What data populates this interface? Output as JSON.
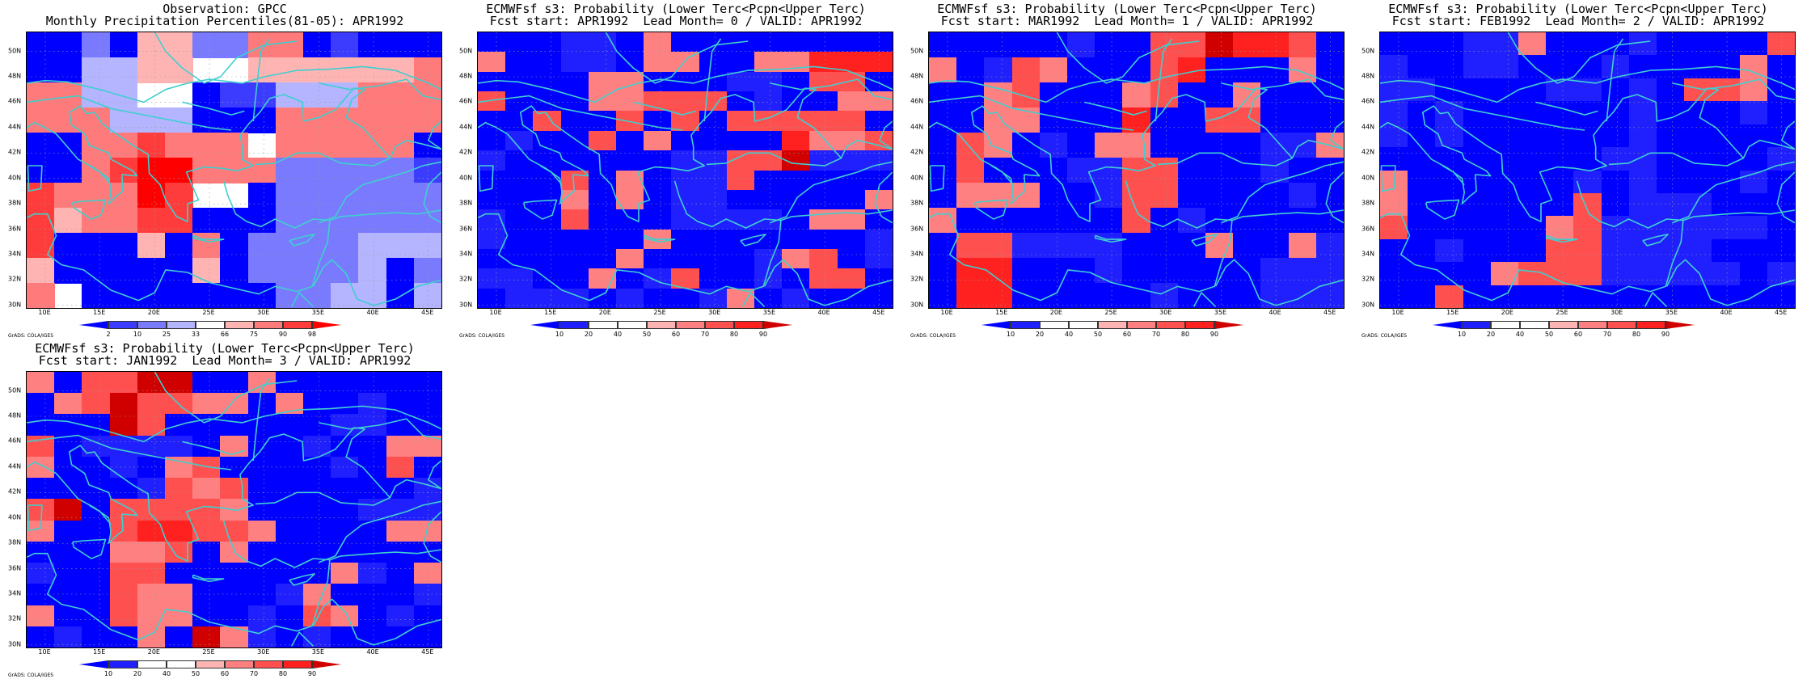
{
  "panels": [
    {
      "id": "obs",
      "title_line1": "Observation: GPCC",
      "title_line2": "Monthly Precipitation Percentiles(81-05): APR1992",
      "colorbar_labels": [
        "2",
        "10",
        "25",
        "33",
        "66",
        "75",
        "90",
        "98"
      ],
      "colorbar_colors": [
        "#0000ff",
        "#3c3cff",
        "#7a7aff",
        "#b4b4ff",
        "#ffffff",
        "#ffb4b4",
        "#ff7a7a",
        "#ff3c3c",
        "#ff0000"
      ],
      "grid_values": [
        [
          0,
          0,
          2,
          0,
          5,
          5,
          2,
          2,
          6,
          6,
          0,
          1,
          0,
          0,
          0
        ],
        [
          0,
          0,
          3,
          3,
          5,
          5,
          4,
          4,
          5,
          5,
          5,
          5,
          5,
          5,
          6
        ],
        [
          6,
          6,
          3,
          3,
          4,
          4,
          0,
          1,
          1,
          3,
          3,
          3,
          6,
          6,
          6
        ],
        [
          6,
          6,
          6,
          3,
          3,
          3,
          0,
          0,
          0,
          6,
          6,
          6,
          6,
          6,
          6
        ],
        [
          0,
          0,
          6,
          6,
          7,
          6,
          6,
          6,
          4,
          6,
          6,
          6,
          6,
          6,
          0
        ],
        [
          0,
          0,
          6,
          7,
          8,
          8,
          6,
          6,
          6,
          2,
          2,
          2,
          2,
          2,
          1
        ],
        [
          7,
          6,
          6,
          6,
          8,
          7,
          4,
          4,
          0,
          2,
          2,
          2,
          2,
          2,
          2
        ],
        [
          7,
          5,
          6,
          6,
          7,
          7,
          0,
          0,
          0,
          2,
          2,
          2,
          2,
          2,
          2
        ],
        [
          7,
          0,
          0,
          0,
          5,
          0,
          6,
          0,
          2,
          2,
          2,
          2,
          3,
          3,
          3
        ],
        [
          5,
          0,
          0,
          0,
          0,
          0,
          5,
          0,
          2,
          2,
          2,
          2,
          3,
          0,
          2
        ],
        [
          6,
          4,
          0,
          0,
          0,
          0,
          0,
          0,
          0,
          2,
          2,
          3,
          3,
          0,
          3
        ]
      ]
    },
    {
      "id": "lead0",
      "title_line1": "ECMWFsf s3: Probability (Lower Terc<Pcpn<Upper Terc)",
      "title_line2": "Fcst start: APR1992  Lead Month= 0 / VALID: APR1992",
      "colorbar_labels": [
        "10",
        "20",
        "40",
        "50",
        "60",
        "70",
        "80",
        "90"
      ],
      "colorbar_colors": [
        "#0000ff",
        "#2020ff",
        "#ffffff",
        "#ffffff",
        "#ffb4b4",
        "#ff8080",
        "#ff5050",
        "#ff2020",
        "#d00000"
      ],
      "grid_values": [
        [
          0,
          0,
          0,
          1,
          1,
          0,
          5,
          0,
          0,
          0,
          0,
          0,
          0,
          0,
          0
        ],
        [
          5,
          0,
          0,
          1,
          1,
          0,
          5,
          5,
          0,
          0,
          5,
          5,
          7,
          7,
          7
        ],
        [
          0,
          0,
          0,
          0,
          5,
          5,
          0,
          0,
          0,
          1,
          1,
          0,
          6,
          6,
          0
        ],
        [
          6,
          0,
          0,
          0,
          5,
          5,
          6,
          6,
          6,
          0,
          1,
          0,
          0,
          5,
          5
        ],
        [
          0,
          0,
          6,
          0,
          0,
          6,
          0,
          6,
          0,
          6,
          6,
          6,
          6,
          6,
          0
        ],
        [
          0,
          1,
          0,
          0,
          6,
          0,
          5,
          0,
          0,
          0,
          0,
          7,
          5,
          5,
          6
        ],
        [
          1,
          0,
          0,
          0,
          0,
          0,
          0,
          1,
          1,
          6,
          6,
          8,
          1,
          1,
          1
        ],
        [
          0,
          0,
          0,
          6,
          0,
          5,
          0,
          1,
          1,
          6,
          0,
          0,
          0,
          0,
          0
        ],
        [
          0,
          0,
          0,
          5,
          0,
          5,
          0,
          1,
          1,
          0,
          0,
          0,
          0,
          0,
          5
        ],
        [
          1,
          0,
          0,
          6,
          0,
          0,
          0,
          1,
          1,
          1,
          1,
          0,
          5,
          5,
          0
        ],
        [
          1,
          0,
          0,
          0,
          0,
          0,
          5,
          0,
          0,
          0,
          0,
          0,
          0,
          0,
          1
        ],
        [
          0,
          0,
          0,
          0,
          0,
          5,
          0,
          0,
          0,
          0,
          1,
          5,
          6,
          0,
          1
        ],
        [
          1,
          1,
          0,
          0,
          5,
          0,
          1,
          6,
          0,
          0,
          1,
          0,
          6,
          6,
          0
        ],
        [
          0,
          1,
          1,
          1,
          0,
          1,
          0,
          0,
          1,
          5,
          0,
          1,
          0,
          0,
          0
        ]
      ]
    },
    {
      "id": "lead1",
      "title_line1": "ECMWFsf s3: Probability (Lower Terc<Pcpn<Upper Terc)",
      "title_line2": "Fcst start: MAR1992  Lead Month= 1 / VALID: APR1992",
      "colorbar_labels": [
        "10",
        "20",
        "40",
        "50",
        "60",
        "70",
        "80",
        "90"
      ],
      "colorbar_colors": [
        "#0000ff",
        "#2020ff",
        "#ffffff",
        "#ffffff",
        "#ffb4b4",
        "#ff8080",
        "#ff5050",
        "#ff2020",
        "#d00000"
      ],
      "grid_values": [
        [
          0,
          0,
          0,
          0,
          0,
          1,
          0,
          0,
          6,
          6,
          8,
          7,
          7,
          6,
          0
        ],
        [
          5,
          0,
          1,
          6,
          5,
          0,
          0,
          0,
          6,
          7,
          0,
          0,
          0,
          5,
          0
        ],
        [
          0,
          0,
          5,
          6,
          0,
          0,
          0,
          5,
          6,
          0,
          0,
          5,
          0,
          0,
          0
        ],
        [
          0,
          0,
          5,
          5,
          0,
          0,
          0,
          7,
          0,
          0,
          6,
          6,
          0,
          0,
          0
        ],
        [
          0,
          6,
          5,
          0,
          1,
          0,
          5,
          5,
          0,
          0,
          0,
          0,
          1,
          1,
          5
        ],
        [
          0,
          6,
          0,
          0,
          0,
          1,
          1,
          6,
          6,
          0,
          0,
          0,
          1,
          0,
          0
        ],
        [
          0,
          5,
          5,
          5,
          0,
          0,
          1,
          6,
          6,
          0,
          0,
          0,
          0,
          1,
          0
        ],
        [
          5,
          0,
          0,
          0,
          0,
          0,
          0,
          6,
          0,
          1,
          0,
          0,
          0,
          0,
          0
        ],
        [
          0,
          6,
          6,
          1,
          1,
          1,
          1,
          0,
          0,
          0,
          5,
          0,
          0,
          5,
          1
        ],
        [
          0,
          7,
          7,
          0,
          0,
          0,
          1,
          0,
          0,
          0,
          0,
          0,
          1,
          1,
          1
        ],
        [
          0,
          7,
          7,
          0,
          0,
          0,
          0,
          0,
          1,
          0,
          0,
          0,
          1,
          1,
          1
        ]
      ]
    },
    {
      "id": "lead2",
      "title_line1": "ECMWFsf s3: Probability (Lower Terc<Pcpn<Upper Terc)",
      "title_line2": "Fcst start: FEB1992  Lead Month= 2 / VALID: APR1992",
      "colorbar_labels": [
        "10",
        "20",
        "40",
        "50",
        "60",
        "70",
        "80",
        "90"
      ],
      "colorbar_colors": [
        "#0000ff",
        "#2020ff",
        "#ffffff",
        "#ffffff",
        "#ffb4b4",
        "#ff8080",
        "#ff5050",
        "#ff2020",
        "#d00000"
      ],
      "grid_values": [
        [
          0,
          0,
          0,
          1,
          1,
          5,
          0,
          0,
          0,
          1,
          0,
          0,
          0,
          0,
          6
        ],
        [
          1,
          0,
          0,
          1,
          1,
          0,
          0,
          0,
          1,
          0,
          0,
          0,
          0,
          5,
          0
        ],
        [
          1,
          1,
          0,
          0,
          0,
          0,
          1,
          1,
          0,
          1,
          0,
          6,
          6,
          5,
          0
        ],
        [
          1,
          0,
          1,
          0,
          0,
          0,
          0,
          0,
          0,
          1,
          0,
          0,
          0,
          1,
          0
        ],
        [
          1,
          0,
          1,
          0,
          0,
          0,
          0,
          0,
          0,
          1,
          0,
          0,
          0,
          0,
          0
        ],
        [
          0,
          0,
          0,
          0,
          0,
          0,
          0,
          0,
          1,
          1,
          0,
          0,
          0,
          0,
          1
        ],
        [
          5,
          0,
          0,
          0,
          0,
          0,
          0,
          1,
          0,
          1,
          0,
          0,
          0,
          1,
          0
        ],
        [
          5,
          0,
          0,
          0,
          0,
          0,
          0,
          6,
          0,
          1,
          1,
          1,
          0,
          0,
          0
        ],
        [
          6,
          0,
          0,
          0,
          0,
          0,
          5,
          6,
          1,
          1,
          1,
          1,
          1,
          1,
          0
        ],
        [
          0,
          0,
          1,
          0,
          0,
          0,
          6,
          6,
          1,
          1,
          1,
          1,
          0,
          0,
          0
        ],
        [
          0,
          0,
          0,
          0,
          5,
          6,
          6,
          6,
          1,
          1,
          1,
          1,
          1,
          0,
          1
        ],
        [
          0,
          0,
          6,
          0,
          0,
          0,
          0,
          0,
          0,
          0,
          0,
          0,
          0,
          0,
          0
        ]
      ]
    },
    {
      "id": "lead3",
      "title_line1": "ECMWFsf s3: Probability (Lower Terc<Pcpn<Upper Terc)",
      "title_line2": "Fcst start: JAN1992  Lead Month= 3 / VALID: APR1992",
      "colorbar_labels": [
        "10",
        "20",
        "40",
        "50",
        "60",
        "70",
        "80",
        "90"
      ],
      "colorbar_colors": [
        "#0000ff",
        "#2020ff",
        "#ffffff",
        "#ffffff",
        "#ffb4b4",
        "#ff8080",
        "#ff5050",
        "#ff2020",
        "#d00000"
      ],
      "grid_values": [
        [
          5,
          0,
          6,
          6,
          8,
          8,
          0,
          0,
          5,
          0,
          0,
          0,
          0,
          0,
          0
        ],
        [
          0,
          5,
          6,
          8,
          6,
          6,
          5,
          5,
          0,
          5,
          0,
          0,
          1,
          0,
          0
        ],
        [
          0,
          0,
          0,
          8,
          6,
          0,
          0,
          0,
          0,
          0,
          0,
          1,
          1,
          0,
          0
        ],
        [
          6,
          0,
          1,
          1,
          1,
          1,
          0,
          5,
          0,
          0,
          1,
          0,
          0,
          5,
          5
        ],
        [
          5,
          0,
          0,
          1,
          0,
          5,
          6,
          0,
          0,
          0,
          0,
          1,
          0,
          6,
          0
        ],
        [
          0,
          0,
          0,
          0,
          1,
          6,
          5,
          6,
          0,
          0,
          0,
          0,
          0,
          0,
          1
        ],
        [
          6,
          8,
          0,
          6,
          6,
          6,
          6,
          5,
          0,
          0,
          0,
          0,
          1,
          1,
          1
        ],
        [
          5,
          0,
          0,
          6,
          7,
          7,
          6,
          6,
          5,
          0,
          0,
          0,
          0,
          5,
          5
        ],
        [
          0,
          0,
          0,
          5,
          5,
          6,
          0,
          5,
          0,
          0,
          0,
          0,
          0,
          0,
          0
        ],
        [
          1,
          0,
          0,
          6,
          6,
          0,
          0,
          0,
          0,
          0,
          0,
          5,
          1,
          0,
          5
        ],
        [
          0,
          0,
          0,
          6,
          5,
          5,
          0,
          0,
          0,
          1,
          5,
          0,
          0,
          0,
          1
        ],
        [
          5,
          0,
          0,
          6,
          5,
          5,
          0,
          0,
          1,
          0,
          6,
          5,
          0,
          1,
          0
        ],
        [
          0,
          1,
          0,
          0,
          5,
          0,
          8,
          5,
          1,
          0,
          1,
          0,
          0,
          0,
          0
        ]
      ]
    }
  ],
  "lat_labels": [
    "50N",
    "48N",
    "46N",
    "44N",
    "42N",
    "40N",
    "38N",
    "36N",
    "34N",
    "32N",
    "30N"
  ],
  "lon_labels": [
    "10E",
    "15E",
    "20E",
    "25E",
    "30E",
    "35E",
    "40E",
    "45E"
  ],
  "grads_label": "GrADS: COLA/IGES",
  "coast_color": "#3fcfcf"
}
